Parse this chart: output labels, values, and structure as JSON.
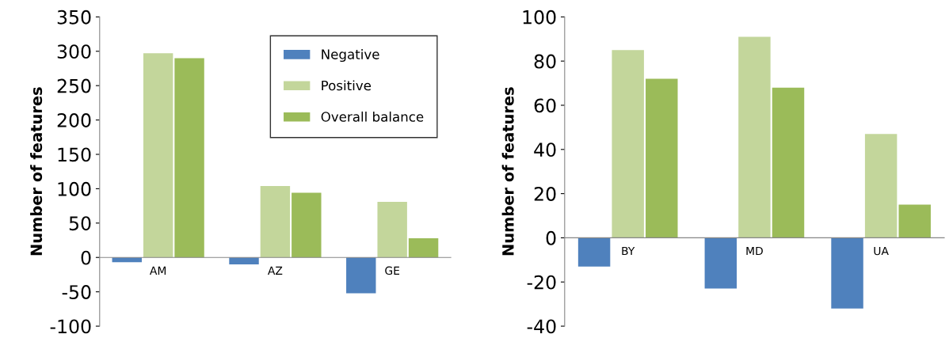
{
  "chart_data": [
    {
      "type": "bar",
      "ylabel": "Number of features",
      "categories": [
        "AM",
        "AZ",
        "GE"
      ],
      "ylim": [
        -100,
        350
      ],
      "yticks": [
        -100,
        -50,
        0,
        50,
        100,
        150,
        200,
        250,
        300,
        350
      ],
      "legend": "top right",
      "grid": false,
      "series": [
        {
          "name": "Negative",
          "color": "#4f81bd",
          "values": [
            -7,
            -10,
            -52
          ]
        },
        {
          "name": "Positive",
          "color": "#c3d69b",
          "values": [
            297,
            104,
            81
          ]
        },
        {
          "name": "Overall balance",
          "color": "#9bbb59",
          "values": [
            290,
            94,
            28
          ]
        }
      ]
    },
    {
      "type": "bar",
      "ylabel": "Number of features",
      "categories": [
        "BY",
        "MD",
        "UA"
      ],
      "ylim": [
        -40,
        100
      ],
      "yticks": [
        -40,
        -20,
        0,
        20,
        40,
        60,
        80,
        100
      ],
      "legend": false,
      "grid": false,
      "series": [
        {
          "color": "#4f81bd",
          "values": [
            -13,
            -23,
            -32
          ]
        },
        {
          "color": "#c3d69b",
          "values": [
            85,
            91,
            47
          ]
        },
        {
          "color": "#9bbb59",
          "values": [
            72,
            68,
            15
          ]
        }
      ]
    }
  ]
}
